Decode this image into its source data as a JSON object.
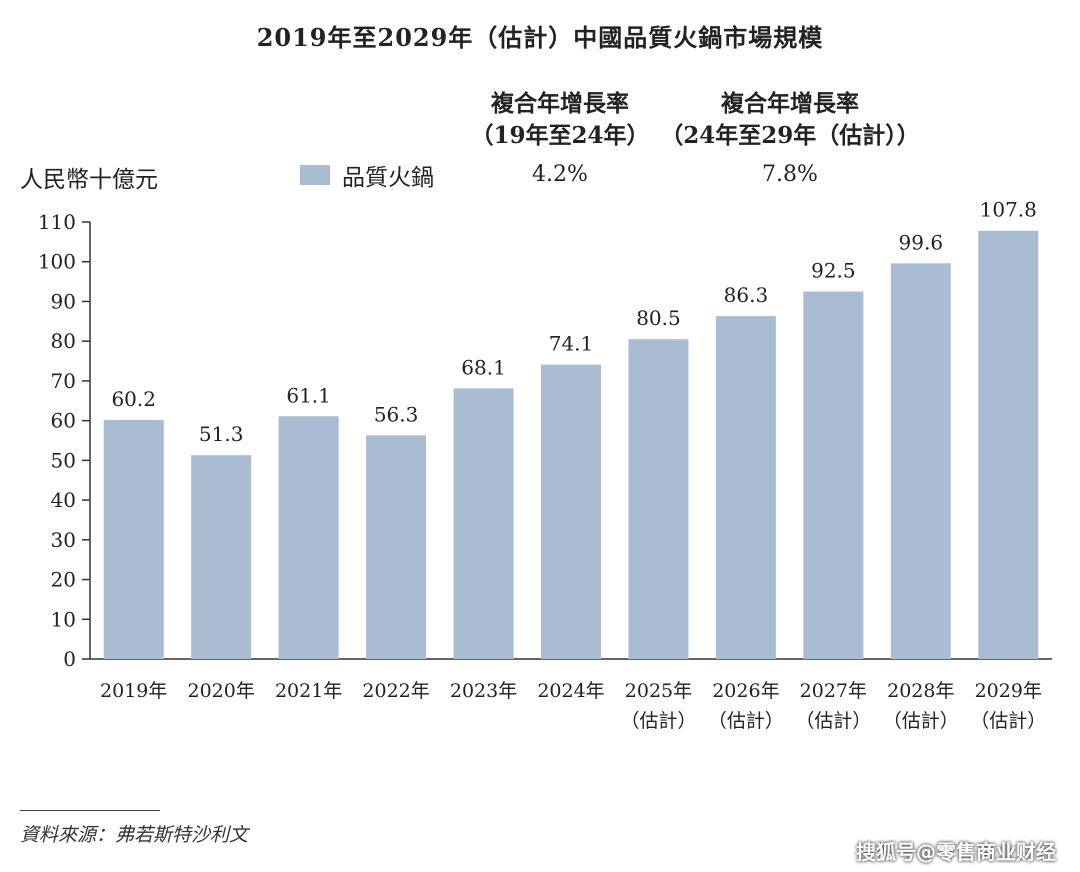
{
  "title": "2019年至2029年（估計）中國品質火鍋市場規模",
  "cagr": [
    {
      "head_line1": "複合年增長率",
      "head_line2": "（19年至24年）",
      "value": "4.2%"
    },
    {
      "head_line1": "複合年增長率",
      "head_line2": "（24年至29年（估計））",
      "value": "7.8%"
    }
  ],
  "unit_label": "人民幣十億元",
  "legend_label": "品質火鍋",
  "source": "資料來源：弗若斯特沙利文",
  "watermark": "搜狐号@零售商业财经",
  "colors": {
    "bar": "#a9bcd2",
    "axis": "#333333"
  },
  "chart_data": {
    "type": "bar",
    "categories": [
      "2019年",
      "2020年",
      "2021年",
      "2022年",
      "2023年",
      "2024年",
      "2025年",
      "2026年",
      "2027年",
      "2028年",
      "2029年"
    ],
    "category_sublabels": [
      "",
      "",
      "",
      "",
      "",
      "",
      "（估計）",
      "（估計）",
      "（估計）",
      "（估計）",
      "（估計）"
    ],
    "series": [
      {
        "name": "品質火鍋",
        "values": [
          60.2,
          51.3,
          61.1,
          56.3,
          68.1,
          74.1,
          80.5,
          86.3,
          92.5,
          99.6,
          107.8
        ]
      }
    ],
    "data_labels": [
      "60.2",
      "51.3",
      "61.1",
      "56.3",
      "68.1",
      "74.1",
      "80.5",
      "86.3",
      "92.5",
      "99.6",
      "107.8"
    ],
    "ylim": [
      0,
      110
    ],
    "yticks": [
      0,
      10,
      20,
      30,
      40,
      50,
      60,
      70,
      80,
      90,
      100,
      110
    ],
    "ylabel": "人民幣十億元",
    "xlabel": "",
    "grid": false,
    "legend_position": "top"
  }
}
